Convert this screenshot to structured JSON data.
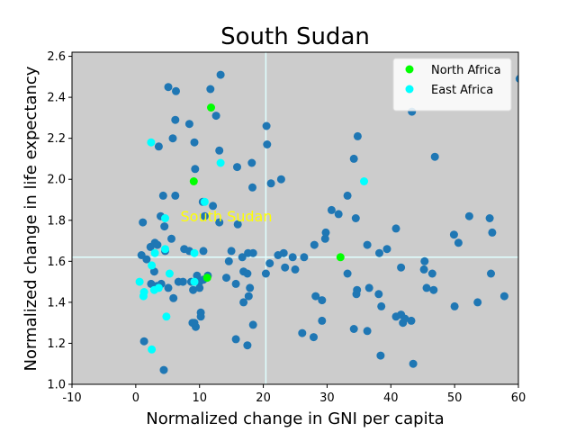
{
  "chart_data": {
    "type": "scatter",
    "title": "South Sudan",
    "xlabel": "Normalized change in GNI per capita",
    "ylabel": "Normalized change in life expectancy",
    "xlim": [
      -10,
      60
    ],
    "ylim": [
      1.0,
      2.62
    ],
    "xticks": [
      -10,
      0,
      10,
      20,
      30,
      40,
      50,
      60
    ],
    "yticks": [
      1.0,
      1.2,
      1.4,
      1.6,
      1.8,
      2.0,
      2.2,
      2.4,
      2.6
    ],
    "grid": false,
    "background": "#cccccc",
    "legend_position": "top-right",
    "reference_lines": {
      "x": 20.4,
      "y": 1.62,
      "color": "#e0ffff"
    },
    "annotation": {
      "text": "South Sudan",
      "x": 7.0,
      "y": 1.82,
      "color": "#ffff00"
    },
    "series": [
      {
        "color": "#1f77b4",
        "points": [
          [
            5.1,
            2.45
          ],
          [
            6.3,
            2.43
          ],
          [
            11.7,
            2.44
          ],
          [
            13.3,
            2.51
          ],
          [
            12.6,
            2.31
          ],
          [
            6.2,
            2.29
          ],
          [
            8.4,
            2.27
          ],
          [
            3.6,
            2.16
          ],
          [
            5.8,
            2.2
          ],
          [
            9.2,
            2.18
          ],
          [
            13.1,
            2.14
          ],
          [
            15.9,
            2.06
          ],
          [
            18.2,
            2.08
          ],
          [
            20.5,
            2.26
          ],
          [
            20.6,
            2.17
          ],
          [
            22.8,
            2.0
          ],
          [
            21.2,
            1.98
          ],
          [
            18.3,
            1.96
          ],
          [
            9.3,
            2.05
          ],
          [
            6.2,
            1.92
          ],
          [
            4.3,
            1.92
          ],
          [
            10.5,
            1.89
          ],
          [
            10.8,
            1.82
          ],
          [
            12.1,
            1.87
          ],
          [
            13.1,
            1.79
          ],
          [
            16.0,
            1.78
          ],
          [
            4.5,
            1.77
          ],
          [
            3.9,
            1.82
          ],
          [
            1.1,
            1.79
          ],
          [
            2.3,
            1.67
          ],
          [
            3.0,
            1.69
          ],
          [
            3.4,
            1.68
          ],
          [
            4.6,
            1.65
          ],
          [
            5.6,
            1.71
          ],
          [
            7.6,
            1.66
          ],
          [
            8.4,
            1.65
          ],
          [
            10.6,
            1.65
          ],
          [
            15.0,
            1.65
          ],
          [
            17.6,
            1.64
          ],
          [
            18.4,
            1.64
          ],
          [
            22.3,
            1.63
          ],
          [
            23.2,
            1.64
          ],
          [
            24.6,
            1.62
          ],
          [
            26.4,
            1.62
          ],
          [
            28.0,
            1.68
          ],
          [
            29.7,
            1.71
          ],
          [
            29.8,
            1.74
          ],
          [
            30.7,
            1.85
          ],
          [
            31.8,
            1.83
          ],
          [
            33.2,
            1.92
          ],
          [
            34.5,
            1.81
          ],
          [
            34.2,
            2.1
          ],
          [
            34.8,
            2.21
          ],
          [
            36.3,
            1.68
          ],
          [
            38.2,
            1.64
          ],
          [
            39.4,
            1.66
          ],
          [
            40.8,
            1.76
          ],
          [
            41.6,
            1.57
          ],
          [
            43.3,
            2.33
          ],
          [
            45.3,
            1.6
          ],
          [
            45.2,
            1.56
          ],
          [
            45.6,
            1.47
          ],
          [
            46.5,
            1.54
          ],
          [
            46.9,
            2.11
          ],
          [
            46.7,
            1.46
          ],
          [
            49.9,
            1.73
          ],
          [
            50.6,
            1.69
          ],
          [
            52.3,
            1.82
          ],
          [
            55.5,
            1.81
          ],
          [
            55.9,
            1.74
          ],
          [
            55.7,
            1.54
          ],
          [
            53.6,
            1.4
          ],
          [
            50.0,
            1.38
          ],
          [
            57.8,
            1.43
          ],
          [
            60.2,
            2.49
          ],
          [
            0.9,
            1.63
          ],
          [
            1.7,
            1.61
          ],
          [
            2.9,
            1.55
          ],
          [
            3.3,
            1.48
          ],
          [
            2.4,
            1.49
          ],
          [
            4.0,
            1.49
          ],
          [
            5.1,
            1.47
          ],
          [
            5.9,
            1.42
          ],
          [
            6.7,
            1.5
          ],
          [
            7.4,
            1.5
          ],
          [
            8.7,
            1.5
          ],
          [
            9.0,
            1.46
          ],
          [
            9.6,
            1.53
          ],
          [
            10.0,
            1.5
          ],
          [
            10.6,
            1.51
          ],
          [
            11.3,
            1.53
          ],
          [
            10.0,
            1.47
          ],
          [
            8.9,
            1.3
          ],
          [
            9.4,
            1.28
          ],
          [
            9.2,
            1.3
          ],
          [
            10.2,
            1.35
          ],
          [
            10.2,
            1.33
          ],
          [
            14.2,
            1.52
          ],
          [
            14.6,
            1.6
          ],
          [
            15.7,
            1.49
          ],
          [
            16.7,
            1.62
          ],
          [
            16.9,
            1.55
          ],
          [
            17.5,
            1.54
          ],
          [
            17.9,
            1.47
          ],
          [
            17.7,
            1.43
          ],
          [
            16.9,
            1.4
          ],
          [
            18.4,
            1.29
          ],
          [
            17.5,
            1.19
          ],
          [
            15.7,
            1.22
          ],
          [
            20.4,
            1.54
          ],
          [
            21.0,
            1.59
          ],
          [
            23.4,
            1.57
          ],
          [
            25.0,
            1.56
          ],
          [
            26.1,
            1.25
          ],
          [
            27.9,
            1.23
          ],
          [
            28.2,
            1.43
          ],
          [
            29.2,
            1.41
          ],
          [
            29.2,
            1.31
          ],
          [
            33.2,
            1.54
          ],
          [
            34.6,
            1.44
          ],
          [
            34.7,
            1.46
          ],
          [
            36.6,
            1.47
          ],
          [
            38.1,
            1.44
          ],
          [
            38.5,
            1.38
          ],
          [
            34.2,
            1.27
          ],
          [
            36.3,
            1.26
          ],
          [
            38.4,
            1.14
          ],
          [
            40.8,
            1.33
          ],
          [
            41.6,
            1.34
          ],
          [
            41.9,
            1.3
          ],
          [
            43.2,
            1.31
          ],
          [
            42.2,
            1.32
          ],
          [
            43.5,
            1.1
          ],
          [
            1.3,
            1.21
          ],
          [
            4.4,
            1.07
          ]
        ]
      },
      {
        "name": "North Africa",
        "color": "#00ff00",
        "points": [
          [
            11.8,
            2.35
          ],
          [
            9.1,
            1.99
          ],
          [
            11.2,
            1.52
          ],
          [
            32.1,
            1.62
          ]
        ]
      },
      {
        "name": "East Africa",
        "color": "#00ffff",
        "points": [
          [
            2.4,
            2.18
          ],
          [
            13.3,
            2.08
          ],
          [
            10.8,
            1.89
          ],
          [
            4.6,
            1.81
          ],
          [
            35.8,
            1.99
          ],
          [
            4.6,
            1.66
          ],
          [
            9.2,
            1.64
          ],
          [
            3.0,
            1.64
          ],
          [
            2.5,
            1.58
          ],
          [
            5.3,
            1.54
          ],
          [
            0.6,
            1.5
          ],
          [
            1.3,
            1.45
          ],
          [
            1.2,
            1.43
          ],
          [
            2.9,
            1.46
          ],
          [
            3.6,
            1.47
          ],
          [
            9.2,
            1.5
          ],
          [
            4.8,
            1.33
          ],
          [
            2.5,
            1.17
          ]
        ]
      }
    ]
  }
}
